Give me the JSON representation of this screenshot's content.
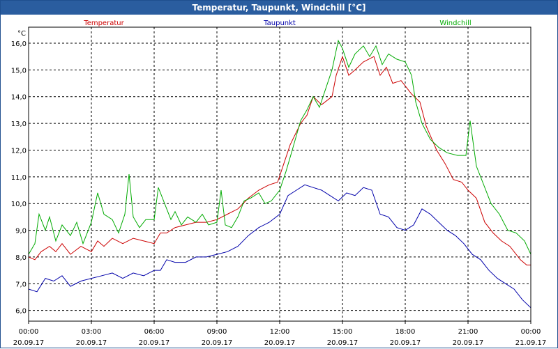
{
  "chart_data": {
    "type": "line",
    "title": "Temperatur, Taupunkt, Windchill [°C]",
    "ylabel": "°C",
    "xlabel": "",
    "ylim": [
      5.6,
      16.6
    ],
    "xlim": [
      0,
      24
    ],
    "grid": true,
    "legend_position": "top",
    "y_ticks": [
      6.0,
      7.0,
      8.0,
      9.0,
      10.0,
      11.0,
      12.0,
      13.0,
      14.0,
      15.0,
      16.0
    ],
    "y_tick_labels": [
      "6,0",
      "7,0",
      "8,0",
      "9,0",
      "10,0",
      "11,0",
      "12,0",
      "13,0",
      "14,0",
      "15,0",
      "16,0"
    ],
    "x_ticks": [
      {
        "hour": 0,
        "time": "00:00",
        "date": "20.09.17"
      },
      {
        "hour": 3,
        "time": "03:00",
        "date": "20.09.17"
      },
      {
        "hour": 6,
        "time": "06:00",
        "date": "20.09.17"
      },
      {
        "hour": 9,
        "time": "09:00",
        "date": "20.09.17"
      },
      {
        "hour": 12,
        "time": "12:00",
        "date": "20.09.17"
      },
      {
        "hour": 15,
        "time": "15:00",
        "date": "20.09.17"
      },
      {
        "hour": 18,
        "time": "18:00",
        "date": "20.09.17"
      },
      {
        "hour": 21,
        "time": "21:00",
        "date": "20.09.17"
      },
      {
        "hour": 24,
        "time": "00:00",
        "date": "21.09.17"
      }
    ],
    "series": [
      {
        "name": "Temperatur",
        "color": "#cc0000",
        "points": [
          [
            0,
            8.0
          ],
          [
            0.3,
            7.9
          ],
          [
            0.6,
            8.2
          ],
          [
            1.0,
            8.4
          ],
          [
            1.3,
            8.2
          ],
          [
            1.6,
            8.5
          ],
          [
            2.0,
            8.1
          ],
          [
            2.5,
            8.4
          ],
          [
            3.0,
            8.2
          ],
          [
            3.3,
            8.6
          ],
          [
            3.6,
            8.4
          ],
          [
            4.0,
            8.7
          ],
          [
            4.5,
            8.5
          ],
          [
            5.0,
            8.7
          ],
          [
            5.5,
            8.6
          ],
          [
            6.0,
            8.5
          ],
          [
            6.3,
            8.9
          ],
          [
            6.6,
            8.9
          ],
          [
            7.0,
            9.1
          ],
          [
            7.5,
            9.2
          ],
          [
            8.0,
            9.3
          ],
          [
            8.5,
            9.3
          ],
          [
            9.0,
            9.4
          ],
          [
            9.5,
            9.6
          ],
          [
            10.0,
            9.8
          ],
          [
            10.5,
            10.2
          ],
          [
            11.0,
            10.5
          ],
          [
            11.5,
            10.7
          ],
          [
            11.9,
            10.8
          ],
          [
            12.2,
            11.5
          ],
          [
            12.5,
            12.2
          ],
          [
            13.0,
            13.0
          ],
          [
            13.3,
            13.3
          ],
          [
            13.6,
            14.0
          ],
          [
            14.0,
            13.7
          ],
          [
            14.5,
            14.0
          ],
          [
            14.7,
            14.8
          ],
          [
            15.0,
            15.5
          ],
          [
            15.3,
            14.8
          ],
          [
            15.6,
            15.0
          ],
          [
            16.0,
            15.3
          ],
          [
            16.5,
            15.5
          ],
          [
            16.8,
            14.8
          ],
          [
            17.1,
            15.1
          ],
          [
            17.4,
            14.5
          ],
          [
            17.8,
            14.6
          ],
          [
            18.3,
            14.1
          ],
          [
            18.7,
            13.8
          ],
          [
            19.0,
            12.9
          ],
          [
            19.5,
            12.0
          ],
          [
            19.9,
            11.5
          ],
          [
            20.3,
            10.9
          ],
          [
            20.7,
            10.8
          ],
          [
            21.0,
            10.5
          ],
          [
            21.4,
            10.2
          ],
          [
            21.8,
            9.3
          ],
          [
            22.2,
            8.9
          ],
          [
            22.6,
            8.6
          ],
          [
            23.0,
            8.4
          ],
          [
            23.5,
            7.9
          ],
          [
            23.8,
            7.7
          ],
          [
            24.0,
            7.7
          ]
        ]
      },
      {
        "name": "Taupunkt",
        "color": "#0000aa",
        "points": [
          [
            0,
            6.8
          ],
          [
            0.4,
            6.7
          ],
          [
            0.8,
            7.2
          ],
          [
            1.2,
            7.1
          ],
          [
            1.6,
            7.3
          ],
          [
            2.0,
            6.9
          ],
          [
            2.5,
            7.1
          ],
          [
            3.0,
            7.2
          ],
          [
            3.5,
            7.3
          ],
          [
            4.0,
            7.4
          ],
          [
            4.5,
            7.2
          ],
          [
            5.0,
            7.4
          ],
          [
            5.5,
            7.3
          ],
          [
            6.0,
            7.5
          ],
          [
            6.3,
            7.5
          ],
          [
            6.6,
            7.9
          ],
          [
            7.0,
            7.8
          ],
          [
            7.5,
            7.8
          ],
          [
            8.0,
            8.0
          ],
          [
            8.5,
            8.0
          ],
          [
            9.0,
            8.1
          ],
          [
            9.5,
            8.2
          ],
          [
            10.0,
            8.4
          ],
          [
            10.5,
            8.8
          ],
          [
            11.0,
            9.1
          ],
          [
            11.5,
            9.3
          ],
          [
            12.0,
            9.6
          ],
          [
            12.4,
            10.3
          ],
          [
            12.8,
            10.5
          ],
          [
            13.2,
            10.7
          ],
          [
            13.6,
            10.6
          ],
          [
            14.0,
            10.5
          ],
          [
            14.4,
            10.3
          ],
          [
            14.8,
            10.1
          ],
          [
            15.2,
            10.4
          ],
          [
            15.6,
            10.3
          ],
          [
            16.0,
            10.6
          ],
          [
            16.4,
            10.5
          ],
          [
            16.8,
            9.6
          ],
          [
            17.2,
            9.5
          ],
          [
            17.6,
            9.1
          ],
          [
            18.0,
            9.0
          ],
          [
            18.4,
            9.2
          ],
          [
            18.8,
            9.8
          ],
          [
            19.2,
            9.6
          ],
          [
            19.6,
            9.3
          ],
          [
            20.0,
            9.0
          ],
          [
            20.4,
            8.8
          ],
          [
            20.8,
            8.5
          ],
          [
            21.2,
            8.1
          ],
          [
            21.6,
            7.9
          ],
          [
            22.0,
            7.5
          ],
          [
            22.4,
            7.2
          ],
          [
            22.8,
            7.0
          ],
          [
            23.2,
            6.8
          ],
          [
            23.6,
            6.4
          ],
          [
            24.0,
            6.1
          ]
        ]
      },
      {
        "name": "Windchill",
        "color": "#00aa00",
        "points": [
          [
            0,
            8.1
          ],
          [
            0.3,
            8.5
          ],
          [
            0.5,
            9.6
          ],
          [
            0.8,
            9.0
          ],
          [
            1.0,
            9.5
          ],
          [
            1.3,
            8.6
          ],
          [
            1.6,
            9.2
          ],
          [
            2.0,
            8.8
          ],
          [
            2.3,
            9.3
          ],
          [
            2.6,
            8.5
          ],
          [
            3.0,
            9.3
          ],
          [
            3.3,
            10.4
          ],
          [
            3.6,
            9.6
          ],
          [
            4.0,
            9.4
          ],
          [
            4.3,
            8.9
          ],
          [
            4.6,
            9.6
          ],
          [
            4.8,
            11.1
          ],
          [
            5.0,
            9.5
          ],
          [
            5.3,
            9.1
          ],
          [
            5.6,
            9.4
          ],
          [
            6.0,
            9.4
          ],
          [
            6.2,
            10.6
          ],
          [
            6.5,
            10.0
          ],
          [
            6.8,
            9.4
          ],
          [
            7.0,
            9.7
          ],
          [
            7.3,
            9.2
          ],
          [
            7.6,
            9.5
          ],
          [
            8.0,
            9.3
          ],
          [
            8.3,
            9.6
          ],
          [
            8.6,
            9.2
          ],
          [
            9.0,
            9.3
          ],
          [
            9.2,
            10.5
          ],
          [
            9.4,
            9.2
          ],
          [
            9.7,
            9.1
          ],
          [
            10.0,
            9.5
          ],
          [
            10.3,
            10.1
          ],
          [
            10.6,
            10.2
          ],
          [
            11.0,
            10.4
          ],
          [
            11.3,
            10.0
          ],
          [
            11.6,
            10.1
          ],
          [
            12.0,
            10.5
          ],
          [
            12.3,
            11.2
          ],
          [
            12.6,
            12.0
          ],
          [
            13.0,
            13.1
          ],
          [
            13.3,
            13.5
          ],
          [
            13.6,
            14.0
          ],
          [
            13.9,
            13.6
          ],
          [
            14.2,
            14.3
          ],
          [
            14.5,
            15.0
          ],
          [
            14.8,
            16.1
          ],
          [
            15.0,
            15.8
          ],
          [
            15.3,
            15.1
          ],
          [
            15.6,
            15.6
          ],
          [
            16.0,
            15.9
          ],
          [
            16.3,
            15.5
          ],
          [
            16.6,
            15.9
          ],
          [
            16.9,
            15.2
          ],
          [
            17.2,
            15.6
          ],
          [
            17.6,
            15.4
          ],
          [
            18.0,
            15.3
          ],
          [
            18.3,
            14.8
          ],
          [
            18.5,
            13.8
          ],
          [
            18.8,
            13.0
          ],
          [
            19.2,
            12.4
          ],
          [
            19.6,
            12.1
          ],
          [
            20.0,
            11.9
          ],
          [
            20.5,
            11.8
          ],
          [
            20.9,
            11.8
          ],
          [
            21.1,
            13.1
          ],
          [
            21.4,
            11.4
          ],
          [
            21.7,
            10.8
          ],
          [
            22.1,
            10.0
          ],
          [
            22.5,
            9.6
          ],
          [
            22.9,
            9.0
          ],
          [
            23.3,
            8.9
          ],
          [
            23.7,
            8.6
          ],
          [
            24.0,
            8.1
          ]
        ]
      }
    ]
  }
}
